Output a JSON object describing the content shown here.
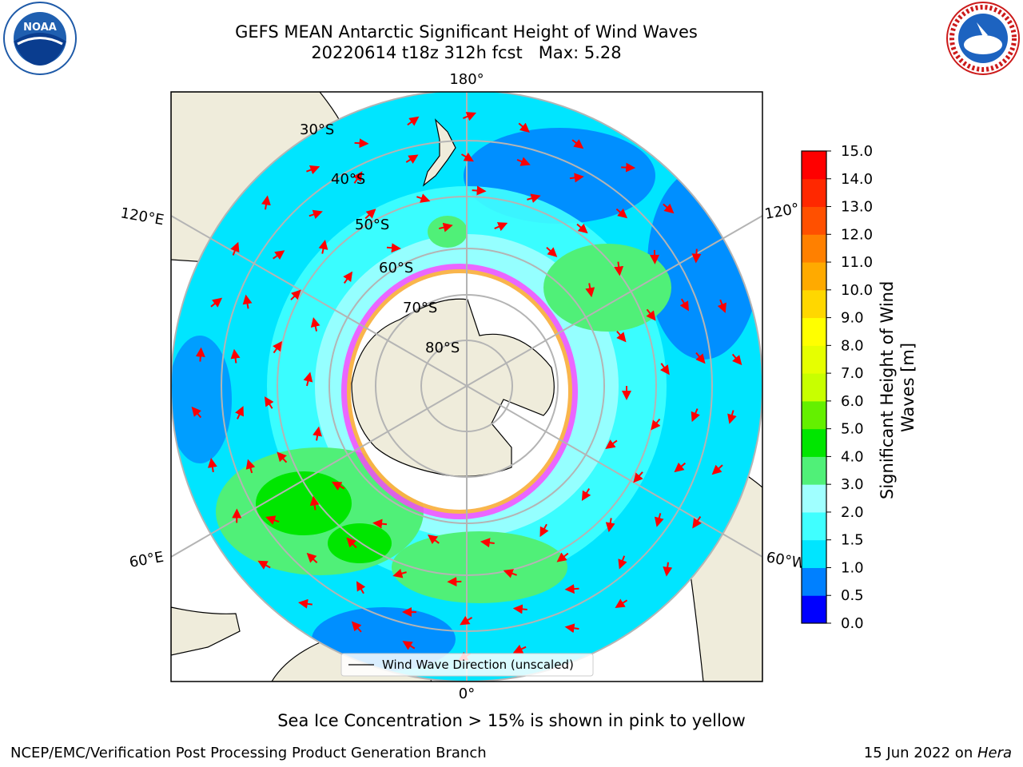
{
  "header": {
    "title_line1": "GEFS MEAN Antarctic Significant Height of Wind Waves",
    "title_line2": "20220614 t18z 312h fcst   Max: 5.28",
    "noaa_logo_text": "NOAA",
    "nws_logo_text": "NATIONAL WEATHER SERVICE"
  },
  "map": {
    "projection": "south-polar-stereographic",
    "longitude_labels": [
      "180°",
      "120°E",
      "120°",
      "60°E",
      "60°W",
      "0°"
    ],
    "latitude_labels": [
      "30°S",
      "40°S",
      "50°S",
      "60°S",
      "70°S",
      "80°S"
    ],
    "legend_label": "Wind Wave Direction (unscaled)",
    "colors": {
      "land": "#efecdb",
      "sea_ice": "#ffffff",
      "arrow": "#ff0000",
      "graticule": "#b4b4b4"
    }
  },
  "colorbar": {
    "label": "Significant Height of Wind Waves [m]",
    "ticks": [
      "0.0",
      "0.5",
      "1.0",
      "1.5",
      "2.0",
      "3.0",
      "4.0",
      "5.0",
      "6.0",
      "7.0",
      "8.0",
      "9.0",
      "10.0",
      "11.0",
      "12.0",
      "13.0",
      "14.0",
      "15.0"
    ],
    "colors": [
      "#0000ff",
      "#0080ff",
      "#00e5ff",
      "#40ffff",
      "#a0ffff",
      "#50f078",
      "#00e600",
      "#64f000",
      "#c8ff00",
      "#e6ff00",
      "#ffff00",
      "#ffd700",
      "#ffaa00",
      "#ff8000",
      "#ff5000",
      "#ff2800",
      "#ff0000"
    ]
  },
  "caption": "Sea Ice Concentration > 15% is shown in pink to yellow",
  "footer": {
    "left": "NCEP/EMC/Verification Post Processing Product Generation Branch",
    "right_prefix": "15 Jun 2022 on ",
    "right_machine": "Hera"
  }
}
